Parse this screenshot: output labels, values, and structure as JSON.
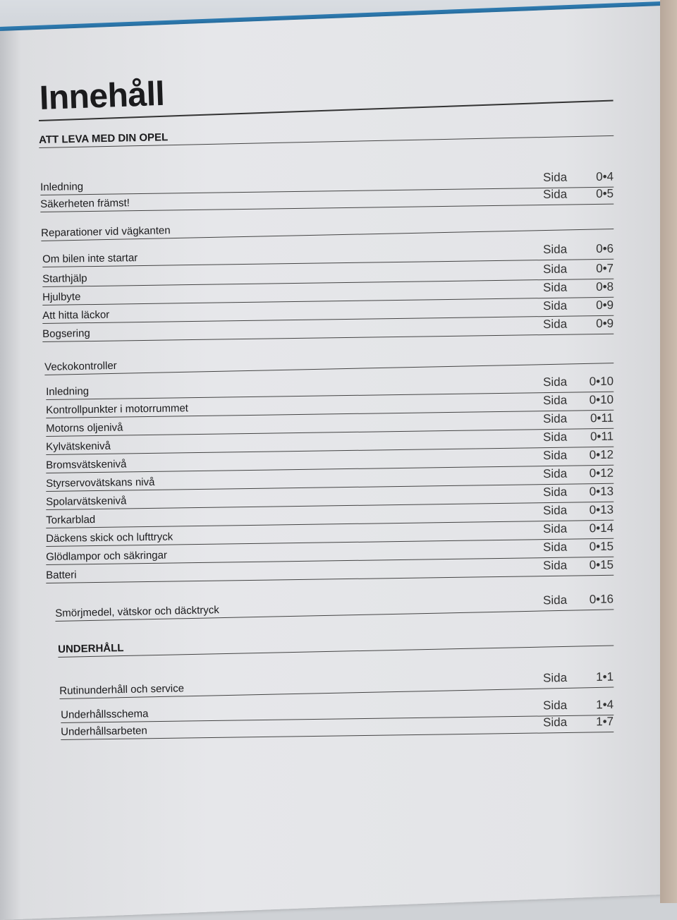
{
  "title": "Innehåll",
  "page_prefix": "Sida",
  "sections": [
    {
      "heading": "ATT LEVA MED DIN OPEL",
      "style": "big",
      "page": "",
      "items": [
        {
          "label": "Inledning",
          "page": "0•4"
        },
        {
          "label": "Säkerheten främst!",
          "page": "0•5"
        }
      ]
    },
    {
      "heading": "Reparationer vid vägkanten",
      "style": "sec",
      "page": "",
      "items": [
        {
          "label": "Om bilen inte startar",
          "page": "0•6"
        },
        {
          "label": "Starthjälp",
          "page": "0•7"
        },
        {
          "label": "Hjulbyte",
          "page": "0•8"
        },
        {
          "label": "Att hitta läckor",
          "page": "0•9"
        },
        {
          "label": "Bogsering",
          "page": "0•9"
        }
      ]
    },
    {
      "heading": "Veckokontroller",
      "style": "sec",
      "page": "",
      "items": [
        {
          "label": "Inledning",
          "page": "0•10"
        },
        {
          "label": "Kontrollpunkter i motorrummet",
          "page": "0•10"
        },
        {
          "label": "Motorns oljenivå",
          "page": "0•11"
        },
        {
          "label": "Kylvätskenivå",
          "page": "0•11"
        },
        {
          "label": "Bromsvätskenivå",
          "page": "0•12"
        },
        {
          "label": "Styrservovätskans nivå",
          "page": "0•12"
        },
        {
          "label": "Spolarvätskenivå",
          "page": "0•13"
        },
        {
          "label": "Torkarblad",
          "page": "0•13"
        },
        {
          "label": "Däckens skick och lufttryck",
          "page": "0•14"
        },
        {
          "label": "Glödlampor och säkringar",
          "page": "0•15"
        },
        {
          "label": "Batteri",
          "page": "0•15"
        }
      ]
    },
    {
      "heading": "Smörjmedel, vätskor och däcktryck",
      "style": "sec",
      "page": "0•16",
      "items": []
    },
    {
      "heading": "UNDERHÅLL",
      "style": "big",
      "page": "",
      "items": []
    },
    {
      "heading": "Rutinunderhåll och service",
      "style": "sec",
      "page": "1•1",
      "items": [
        {
          "label": "Underhållsschema",
          "page": "1•4"
        },
        {
          "label": "Underhållsarbeten",
          "page": "1•7"
        }
      ]
    }
  ]
}
